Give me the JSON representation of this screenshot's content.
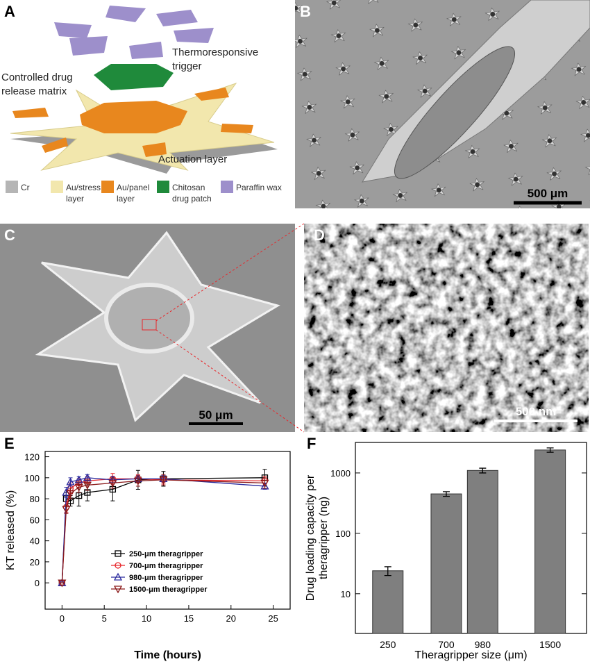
{
  "panels": {
    "A": {
      "label": "A",
      "annotations": [
        {
          "lines": [
            "Thermoresponsive",
            "trigger"
          ]
        },
        {
          "lines": [
            "Controlled drug",
            "release matrix"
          ]
        },
        {
          "lines": [
            "Actuation layer"
          ]
        }
      ],
      "legend": [
        {
          "lines": [
            "Cr"
          ],
          "color": "#b5b5b5"
        },
        {
          "lines": [
            "Au/stress",
            "layer"
          ],
          "color": "#f2e7ad"
        },
        {
          "lines": [
            "Au/panel",
            "layer"
          ],
          "color": "#e8871e"
        },
        {
          "lines": [
            "Chitosan",
            "drug patch"
          ],
          "color": "#1f8a3b"
        },
        {
          "lines": [
            "Paraffin wax"
          ],
          "color": "#9d8fcb"
        }
      ]
    },
    "B": {
      "label": "B",
      "scale_bar": "500 μm"
    },
    "C": {
      "label": "C",
      "scale_bar": "50 μm"
    },
    "D": {
      "label": "D",
      "scale_bar": "500 nm"
    }
  },
  "chart_data": [
    {
      "type": "line",
      "panel": "E",
      "xlabel": "Time (hours)",
      "ylabel": "KT released (%)",
      "x": [
        0,
        0.5,
        1,
        2,
        3,
        6,
        9,
        12,
        24
      ],
      "series": [
        {
          "name": "250-μm theragripper",
          "color": "#000000",
          "marker": "square",
          "values": [
            0,
            80,
            78,
            83,
            86,
            89,
            98,
            99,
            100
          ],
          "errors": [
            0,
            6,
            5,
            10,
            8,
            11,
            9,
            7,
            8
          ]
        },
        {
          "name": "700-μm theragripper",
          "color": "#e8262a",
          "marker": "circle",
          "values": [
            0,
            72,
            90,
            95,
            97,
            99,
            99,
            98,
            97
          ],
          "errors": [
            0,
            5,
            5,
            4,
            4,
            5,
            4,
            4,
            4
          ]
        },
        {
          "name": "980-μm theragripper",
          "color": "#2b2b9e",
          "marker": "triangle-up",
          "values": [
            0,
            86,
            96,
            98,
            100,
            98,
            99,
            99,
            92
          ],
          "errors": [
            0,
            5,
            4,
            3,
            3,
            3,
            3,
            3,
            3
          ]
        },
        {
          "name": "1500-μm theragripper",
          "color": "#8b1a1a",
          "marker": "triangle-down",
          "values": [
            0,
            70,
            85,
            91,
            93,
            95,
            97,
            98,
            95
          ],
          "errors": [
            0,
            4,
            5,
            5,
            5,
            5,
            5,
            5,
            5
          ]
        }
      ],
      "xlim": [
        -2,
        27
      ],
      "xticks": [
        0,
        5,
        10,
        15,
        20,
        25
      ],
      "ylim": [
        -25,
        125
      ],
      "yticks": [
        0,
        20,
        40,
        60,
        80,
        100,
        120
      ],
      "legend": "lower center"
    },
    {
      "type": "bar",
      "panel": "F",
      "xlabel": "Theragripper size (μm)",
      "ylabel": [
        "Drug loading capacity per",
        "theragripper (ng)"
      ],
      "x": [
        250,
        700,
        980,
        1500
      ],
      "values": [
        24,
        450,
        1100,
        2400
      ],
      "errors": [
        4,
        40,
        100,
        200
      ],
      "color": "#7f7f7f",
      "log_y": true,
      "xlim": [
        0,
        1780
      ],
      "xticks": [
        250,
        700,
        980,
        1500
      ],
      "ylim": [
        2.2,
        3200
      ],
      "yticks": [
        10,
        100,
        1000
      ]
    }
  ]
}
